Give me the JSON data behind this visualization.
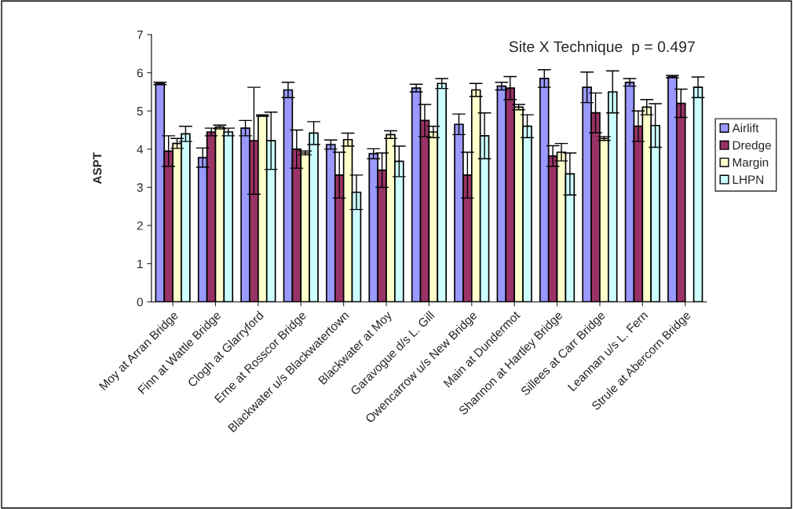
{
  "chart_data": {
    "type": "bar",
    "ylabel": "ASPT",
    "annotations": [
      "Site X Technique  p = 0.497"
    ],
    "categories": [
      "Moy at Arran Bridge",
      "Finn at Wattle Bridge",
      "Clogh at Glarryford",
      "Erne at Rosscor Bridge",
      "Blackwater u/s Blackwatertown",
      "Blackwater at Moy",
      "Garavogue d/s L. Gill",
      "Owencarrow u/s New Bridge",
      "Main at Dundermot",
      "Shannon at Hartley Bridge",
      "Sillees at Carr Bridge",
      "Leannan u/s L. Fern",
      "Strule at Abercorn Bridge"
    ],
    "series": [
      {
        "name": "Airlift",
        "color": "#9999ff",
        "values": [
          5.72,
          3.78,
          4.55,
          5.55,
          4.12,
          3.88,
          5.6,
          4.65,
          5.65,
          5.85,
          5.62,
          5.75,
          5.9
        ],
        "errors": [
          0.03,
          0.25,
          0.2,
          0.2,
          0.12,
          0.13,
          0.1,
          0.27,
          0.1,
          0.23,
          0.4,
          0.1,
          0.03
        ]
      },
      {
        "name": "Dredge",
        "color": "#993366",
        "values": [
          3.95,
          4.45,
          4.22,
          4.0,
          3.32,
          3.45,
          4.75,
          3.32,
          5.6,
          3.82,
          4.95,
          4.6,
          5.2
        ],
        "errors": [
          0.4,
          0.1,
          1.4,
          0.5,
          0.6,
          0.45,
          0.42,
          0.6,
          0.3,
          0.27,
          0.52,
          0.4,
          0.37
        ]
      },
      {
        "name": "Margin",
        "color": "#ffffcc",
        "values": [
          4.15,
          4.58,
          4.88,
          3.9,
          4.25,
          4.38,
          4.45,
          5.55,
          5.1,
          3.92,
          4.28,
          5.1,
          null
        ],
        "errors": [
          0.13,
          0.05,
          0.02,
          0.05,
          0.17,
          0.1,
          0.15,
          0.17,
          0.07,
          0.23,
          0.05,
          0.2,
          null
        ]
      },
      {
        "name": "LHPN",
        "color": "#ccffff",
        "values": [
          4.4,
          4.45,
          4.22,
          4.42,
          2.87,
          3.68,
          5.72,
          4.35,
          4.6,
          3.35,
          5.5,
          4.62,
          5.62
        ],
        "errors": [
          0.2,
          0.1,
          0.75,
          0.3,
          0.45,
          0.4,
          0.13,
          0.6,
          0.3,
          0.55,
          0.55,
          0.57,
          0.27
        ]
      }
    ],
    "ylim": [
      0,
      7
    ],
    "yticks": [
      0,
      1,
      2,
      3,
      4,
      5,
      6,
      7
    ],
    "grid": false,
    "legend": "right"
  }
}
